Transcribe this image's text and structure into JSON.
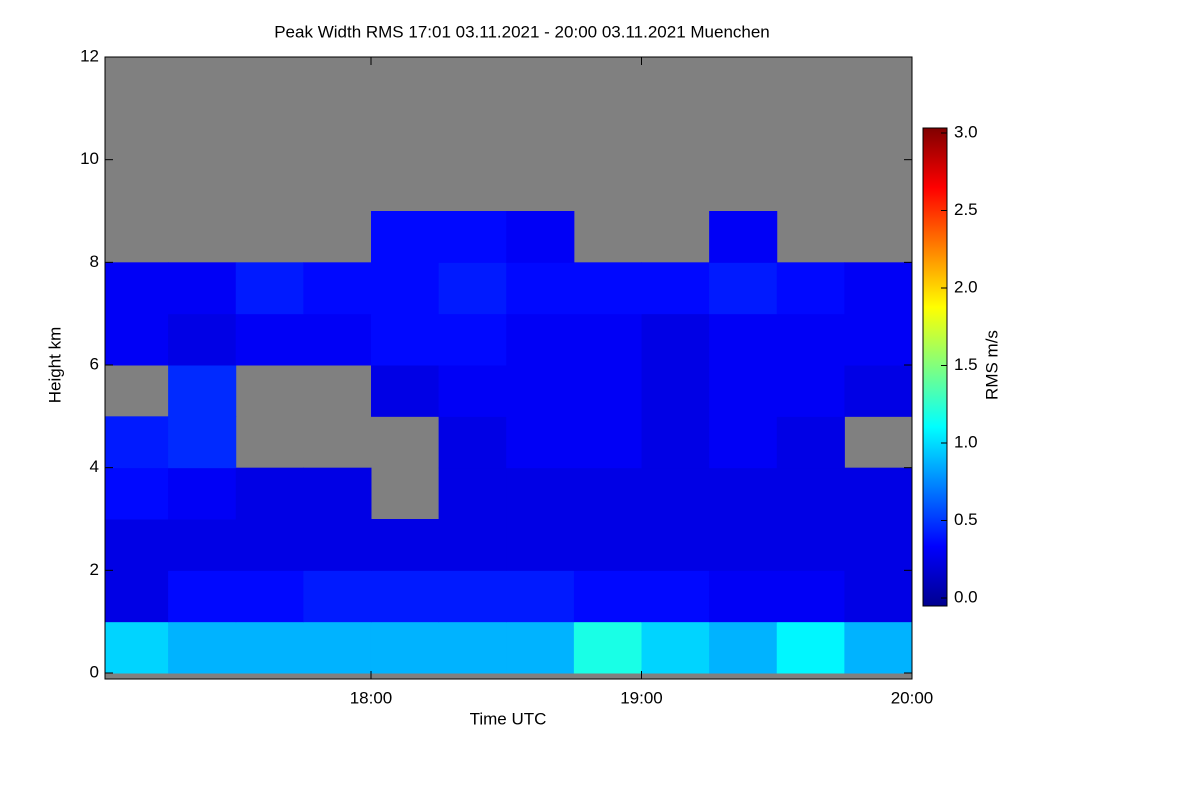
{
  "chart_data": {
    "type": "heatmap",
    "title": "Peak Width RMS   17:01 03.11.2021 - 20:00 03.11.2021 Muenchen",
    "x_label": "Time UTC",
    "y_label": "Height km",
    "colorbar_label": "RMS m/s",
    "xbins": [
      17.0167,
      17.25,
      17.5,
      17.75,
      18,
      18.25,
      18.5,
      18.75,
      19,
      19.25,
      19.5,
      19.75,
      20
    ],
    "ybins": [
      0,
      1,
      2,
      3,
      4,
      5,
      6,
      7,
      8,
      9,
      10,
      11,
      12
    ],
    "values": [
      [
        1.0,
        0.9,
        0.9,
        0.9,
        0.9,
        0.9,
        0.9,
        1.2,
        1.0,
        0.9,
        1.1,
        0.9
      ],
      [
        0.3,
        0.4,
        0.4,
        0.45,
        0.45,
        0.45,
        0.45,
        0.4,
        0.4,
        0.35,
        0.35,
        0.3
      ],
      [
        0.3,
        0.3,
        0.3,
        0.3,
        0.3,
        0.3,
        0.3,
        0.3,
        0.3,
        0.3,
        0.3,
        0.3
      ],
      [
        0.4,
        0.35,
        0.3,
        0.3,
        null,
        0.3,
        0.3,
        0.3,
        0.3,
        0.3,
        0.3,
        0.3
      ],
      [
        0.45,
        0.5,
        null,
        null,
        null,
        0.3,
        0.35,
        0.35,
        0.3,
        0.35,
        0.3,
        null
      ],
      [
        null,
        0.5,
        null,
        null,
        0.3,
        0.35,
        0.35,
        0.35,
        0.3,
        0.35,
        0.35,
        0.3
      ],
      [
        0.35,
        0.3,
        0.35,
        0.35,
        0.4,
        0.4,
        0.35,
        0.35,
        0.3,
        0.35,
        0.35,
        0.35
      ],
      [
        0.35,
        0.35,
        0.45,
        0.4,
        0.4,
        0.45,
        0.4,
        0.4,
        0.4,
        0.45,
        0.4,
        0.35
      ],
      [
        null,
        null,
        null,
        null,
        0.4,
        0.4,
        0.35,
        null,
        null,
        0.35,
        null,
        null
      ],
      [
        null,
        null,
        null,
        null,
        null,
        null,
        null,
        null,
        null,
        null,
        null,
        null
      ],
      [
        null,
        null,
        null,
        null,
        null,
        null,
        null,
        null,
        null,
        null,
        null,
        null
      ],
      [
        null,
        null,
        null,
        null,
        null,
        null,
        null,
        null,
        null,
        null,
        null,
        null
      ]
    ],
    "xlim": [
      17.0167,
      20
    ],
    "ylim": [
      0,
      12
    ],
    "xticks": [
      {
        "value": 18,
        "label": "18:00"
      },
      {
        "value": 19,
        "label": "19:00"
      },
      {
        "value": 20,
        "label": "20:00"
      }
    ],
    "yticks": [
      0,
      2,
      4,
      6,
      8,
      10,
      12
    ],
    "clim": [
      0,
      3
    ],
    "cticks": [
      {
        "value": 0,
        "label": "0.0"
      },
      {
        "value": 0.5,
        "label": "0.5"
      },
      {
        "value": 1,
        "label": "1.0"
      },
      {
        "value": 1.5,
        "label": "1.5"
      },
      {
        "value": 2,
        "label": "2.0"
      },
      {
        "value": 2.5,
        "label": "2.5"
      },
      {
        "value": 3,
        "label": "3.0"
      }
    ],
    "missing_color": "#808080",
    "colormap": "jet"
  }
}
